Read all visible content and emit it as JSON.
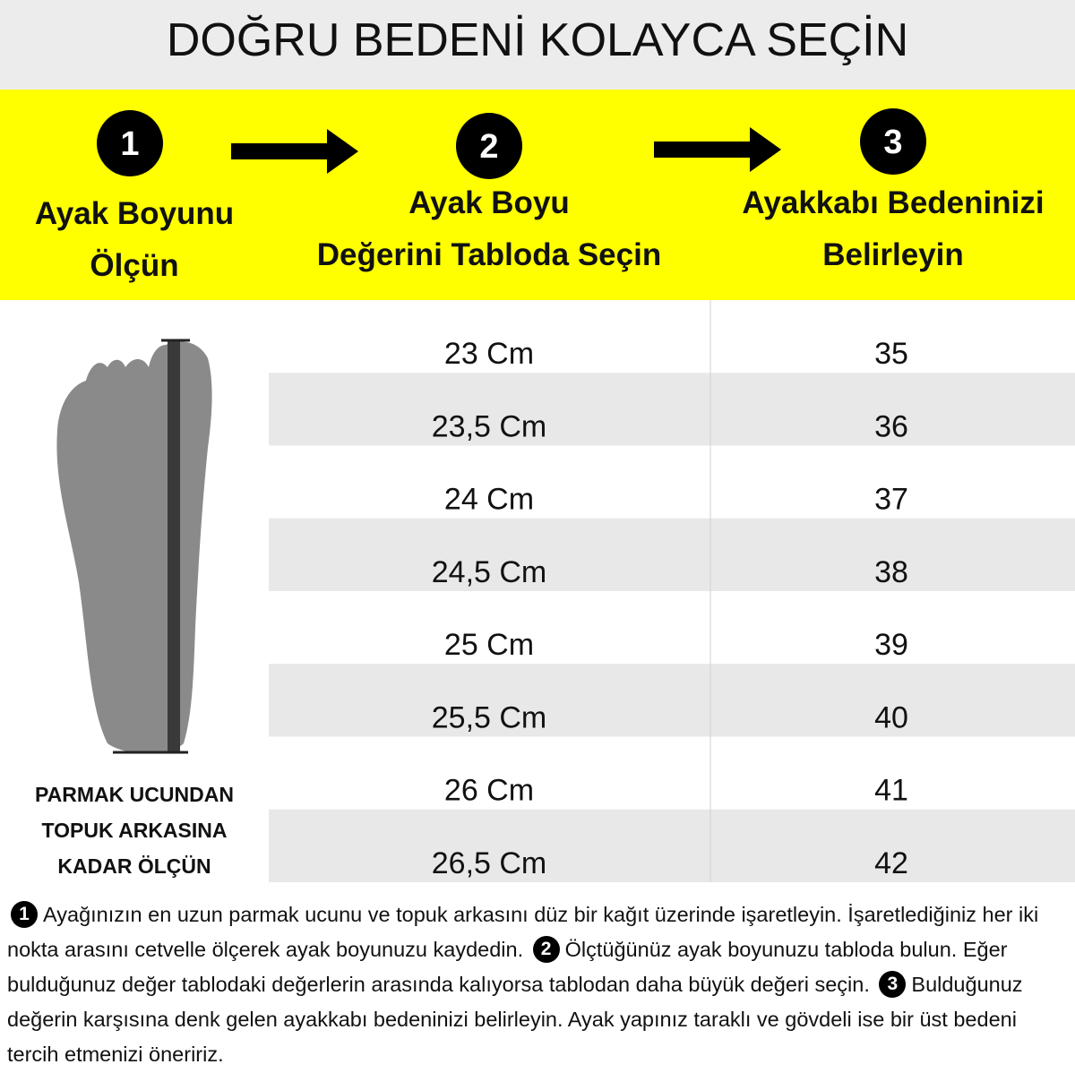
{
  "title": "DOĞRU BEDENİ KOLAYCA SEÇİN",
  "steps": [
    {
      "number": "1",
      "label_lines": [
        "Ayak Boyunu",
        "Ölçün"
      ]
    },
    {
      "number": "2",
      "label_lines": [
        "Ayak Boyu",
        "Değerini Tabloda Seçin"
      ]
    },
    {
      "number": "3",
      "label_lines": [
        "Ayakkabı Bedeninizi",
        "Belirleyin"
      ]
    }
  ],
  "table": {
    "rows": [
      [
        "23 Cm",
        "35"
      ],
      [
        "23,5 Cm",
        "36"
      ],
      [
        "24 Cm",
        "37"
      ],
      [
        "24,5 Cm",
        "38"
      ],
      [
        "25 Cm",
        "39"
      ],
      [
        "25,5 Cm",
        "40"
      ],
      [
        "26 Cm",
        "41"
      ],
      [
        "26,5 Cm",
        "42"
      ]
    ]
  },
  "foot_caption": [
    "PARMAK UCUNDAN",
    "TOPUK ARKASINA",
    "KADAR ÖLÇÜN"
  ],
  "instructions": [
    {
      "number": "1",
      "text": "Ayağınızın en uzun parmak ucunu ve topuk arkasını düz bir kağıt üzerinde işaretleyin. İşaretlediğiniz her iki nokta arasını cetvelle ölçerek ayak boyunuzu kaydedin."
    },
    {
      "number": "2",
      "text": "Ölçtüğünüz ayak boyunuzu tabloda bulun. Eğer bulduğunuz değer tablodaki değerlerin arasında kalıyorsa tablodan daha büyük değeri seçin."
    },
    {
      "number": "3",
      "text": "Bulduğunuz değerin karşısına denk gelen ayakkabı bedeninizi belirleyin. Ayak yapınız taraklı ve gövdeli ise bir üst bedeni tercih etmenizi öneririz."
    }
  ]
}
